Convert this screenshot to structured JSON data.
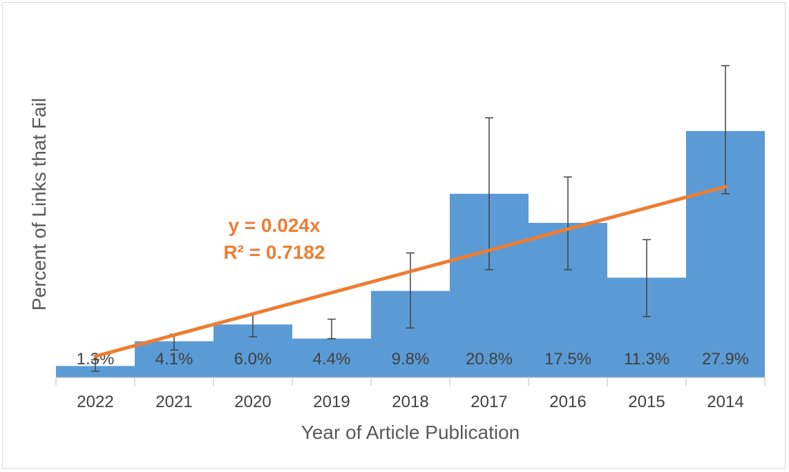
{
  "chart_data": {
    "type": "bar",
    "title": "",
    "xlabel": "Year of Article Publication",
    "ylabel": "Percent of Links that Fail",
    "categories": [
      "2022",
      "2021",
      "2020",
      "2019",
      "2018",
      "2017",
      "2016",
      "2015",
      "2014"
    ],
    "values": [
      1.3,
      4.1,
      6.0,
      4.4,
      9.8,
      20.8,
      17.5,
      11.3,
      27.9
    ],
    "data_labels": [
      "1.3%",
      "4.1%",
      "6.0%",
      "4.4%",
      "9.8%",
      "20.8%",
      "17.5%",
      "11.3%",
      "27.9%"
    ],
    "error_bars": {
      "low": [
        0.7,
        3.1,
        4.6,
        4.4,
        5.6,
        12.2,
        12.2,
        6.9,
        20.8
      ],
      "high": [
        2.0,
        4.9,
        7.2,
        6.6,
        14.1,
        29.4,
        22.7,
        15.6,
        35.3
      ]
    },
    "trendline": {
      "type": "linear",
      "slope": 0.024,
      "intercept": 0,
      "equation_label": "y = 0.024x",
      "r2_label": "R² = 0.7182",
      "color": "#ed7d31"
    },
    "ylim": [
      0,
      40
    ],
    "grid": false,
    "legend": "none",
    "bar_color": "#5b9bd5",
    "error_bar_color": "#404040"
  }
}
